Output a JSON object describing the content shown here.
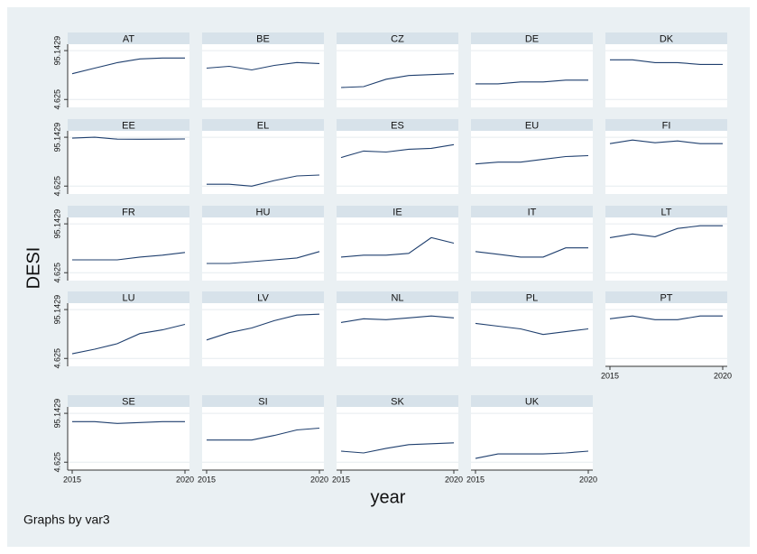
{
  "y_label": "DESI",
  "x_label": "year",
  "note": "Graphs by var3",
  "axes": {
    "xlim": [
      2014.8,
      2020.2
    ],
    "xticks": [
      2015,
      2020
    ],
    "ylim": [
      -10,
      107
    ],
    "yticks": [
      4.625,
      95.1429
    ]
  },
  "chart_data": [
    {
      "type": "line",
      "title": "AT",
      "x": [
        2015,
        2016,
        2017,
        2018,
        2019,
        2020
      ],
      "values": [
        52.4,
        62.7,
        72.9,
        79.8,
        81.5,
        81.5
      ],
      "color": "#1f3f6e"
    },
    {
      "type": "line",
      "title": "BE",
      "x": [
        2015,
        2016,
        2017,
        2018,
        2019,
        2020
      ],
      "values": [
        62.7,
        66.1,
        59.3,
        67.8,
        73.0,
        71.2
      ],
      "color": "#1f3f6e"
    },
    {
      "type": "line",
      "title": "CZ",
      "x": [
        2015,
        2016,
        2017,
        2018,
        2019,
        2020
      ],
      "values": [
        26.8,
        28.5,
        42.2,
        49.0,
        50.7,
        52.4
      ],
      "color": "#1f3f6e"
    },
    {
      "type": "line",
      "title": "DE",
      "x": [
        2015,
        2016,
        2017,
        2018,
        2019,
        2020
      ],
      "values": [
        33.7,
        33.7,
        37.1,
        37.1,
        40.5,
        40.5
      ],
      "color": "#1f3f6e"
    },
    {
      "type": "line",
      "title": "DK",
      "x": [
        2015,
        2016,
        2017,
        2018,
        2019,
        2020
      ],
      "values": [
        78.1,
        78.1,
        72.9,
        72.9,
        69.5,
        69.5
      ],
      "color": "#1f3f6e"
    },
    {
      "type": "line",
      "title": "EE",
      "x": [
        2015,
        2016,
        2017,
        2018,
        2019,
        2020
      ],
      "values": [
        93.4,
        95.1,
        91.7,
        91.4,
        91.7,
        92.0
      ],
      "color": "#1f3f6e"
    },
    {
      "type": "line",
      "title": "EL",
      "x": [
        2015,
        2016,
        2017,
        2018,
        2019,
        2020
      ],
      "values": [
        8.0,
        8.0,
        4.6,
        14.9,
        23.4,
        25.1
      ],
      "color": "#1f3f6e"
    },
    {
      "type": "line",
      "title": "ES",
      "x": [
        2015,
        2016,
        2017,
        2018,
        2019,
        2020
      ],
      "values": [
        57.6,
        69.5,
        67.8,
        72.9,
        74.6,
        81.5
      ],
      "color": "#1f3f6e"
    },
    {
      "type": "line",
      "title": "EU",
      "x": [
        2015,
        2016,
        2017,
        2018,
        2019,
        2020
      ],
      "values": [
        45.6,
        49.0,
        49.0,
        54.2,
        59.3,
        61.0
      ],
      "color": "#1f3f6e"
    },
    {
      "type": "line",
      "title": "FI",
      "x": [
        2015,
        2016,
        2017,
        2018,
        2019,
        2020
      ],
      "values": [
        83.2,
        90.0,
        84.9,
        88.3,
        83.2,
        83.2
      ],
      "color": "#1f3f6e"
    },
    {
      "type": "line",
      "title": "FR",
      "x": [
        2015,
        2016,
        2017,
        2018,
        2019,
        2020
      ],
      "values": [
        28.5,
        28.5,
        28.5,
        33.7,
        37.1,
        42.2
      ],
      "color": "#1f3f6e"
    },
    {
      "type": "line",
      "title": "HU",
      "x": [
        2015,
        2016,
        2017,
        2018,
        2019,
        2020
      ],
      "values": [
        21.7,
        21.7,
        25.1,
        28.5,
        31.9,
        43.9
      ],
      "color": "#1f3f6e"
    },
    {
      "type": "line",
      "title": "IE",
      "x": [
        2015,
        2016,
        2017,
        2018,
        2019,
        2020
      ],
      "values": [
        33.7,
        37.1,
        37.1,
        40.5,
        69.5,
        59.3
      ],
      "color": "#1f3f6e"
    },
    {
      "type": "line",
      "title": "IT",
      "x": [
        2015,
        2016,
        2017,
        2018,
        2019,
        2020
      ],
      "values": [
        43.9,
        38.8,
        33.7,
        33.7,
        50.7,
        50.7
      ],
      "color": "#1f3f6e"
    },
    {
      "type": "line",
      "title": "LT",
      "x": [
        2015,
        2016,
        2017,
        2018,
        2019,
        2020
      ],
      "values": [
        69.5,
        76.4,
        71.2,
        86.6,
        91.7,
        91.7
      ],
      "color": "#1f3f6e"
    },
    {
      "type": "line",
      "title": "LU",
      "x": [
        2015,
        2016,
        2017,
        2018,
        2019,
        2020
      ],
      "values": [
        13.2,
        21.7,
        31.9,
        50.7,
        57.6,
        67.8
      ],
      "color": "#1f3f6e"
    },
    {
      "type": "line",
      "title": "LV",
      "x": [
        2015,
        2016,
        2017,
        2018,
        2019,
        2020
      ],
      "values": [
        38.8,
        52.4,
        61.0,
        74.6,
        84.9,
        86.6
      ],
      "color": "#1f3f6e"
    },
    {
      "type": "line",
      "title": "NL",
      "x": [
        2015,
        2016,
        2017,
        2018,
        2019,
        2020
      ],
      "values": [
        71.2,
        78.1,
        76.4,
        79.8,
        83.2,
        79.8
      ],
      "color": "#1f3f6e"
    },
    {
      "type": "line",
      "title": "PL",
      "x": [
        2015,
        2016,
        2017,
        2018,
        2019,
        2020
      ],
      "values": [
        69.5,
        64.4,
        59.3,
        49.0,
        54.2,
        59.3
      ],
      "color": "#1f3f6e"
    },
    {
      "type": "line",
      "title": "PT",
      "x": [
        2015,
        2016,
        2017,
        2018,
        2019,
        2020
      ],
      "values": [
        78.1,
        83.2,
        76.4,
        76.4,
        83.2,
        83.2
      ],
      "color": "#1f3f6e"
    },
    {
      "type": "line",
      "title": "SE",
      "x": [
        2015,
        2016,
        2017,
        2018,
        2019,
        2020
      ],
      "values": [
        79.8,
        79.8,
        76.4,
        78.1,
        79.8,
        79.8
      ],
      "color": "#1f3f6e"
    },
    {
      "type": "line",
      "title": "SI",
      "x": [
        2015,
        2016,
        2017,
        2018,
        2019,
        2020
      ],
      "values": [
        45.6,
        45.6,
        45.6,
        54.2,
        64.4,
        67.8
      ],
      "color": "#1f3f6e"
    },
    {
      "type": "line",
      "title": "SK",
      "x": [
        2015,
        2016,
        2017,
        2018,
        2019,
        2020
      ],
      "values": [
        25.1,
        21.7,
        30.2,
        37.1,
        38.8,
        40.5
      ],
      "color": "#1f3f6e"
    },
    {
      "type": "line",
      "title": "UK",
      "x": [
        2015,
        2016,
        2017,
        2018,
        2019,
        2020
      ],
      "values": [
        11.5,
        20.0,
        20.0,
        20.0,
        21.7,
        25.1
      ],
      "color": "#1f3f6e"
    }
  ]
}
